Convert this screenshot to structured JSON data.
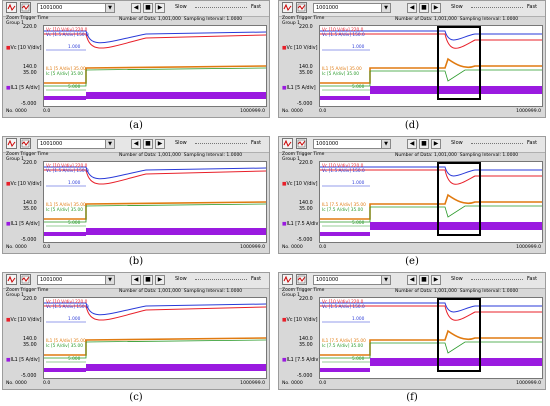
{
  "panels": [
    {
      "caption": "(a)",
      "combo_value": "1001000",
      "slow_label": "Slow",
      "fast_label": "Fast",
      "zoom_label": "Zoom",
      "trigger_label": "Trigger",
      "time_label": "Time",
      "group_label": "Group 1",
      "num_data": "Number of Data: 1,001,000",
      "sampling": "Sampling Interval: 1.0000",
      "y_top": "220.0",
      "y_mid_hi": "140.0",
      "y_mid_lo": "35.00",
      "y_bottom": "-5.000",
      "vc_axis_label": "Vc [10 V/div]",
      "il_axis_label": "IL1 [5 A/div]",
      "legend_top_1": "Vc [10 V/div] 220.0",
      "legend_top_2": "Vc [1.5 A/div] 150.0",
      "legend_top_mark": "1.000",
      "legend_mid_1": "IL1 [5 A/div] 35.00",
      "legend_mid_2": "Ic [5 A/div] 35.00",
      "legend_mid_mark": "5.000",
      "x_start_label": "No. 0000",
      "x_start": "0.0",
      "x_end": "1000999.0"
    },
    {
      "caption": "(d)",
      "combo_value": "1001000",
      "slow_label": "Slow",
      "fast_label": "Fast",
      "zoom_label": "Zoom",
      "trigger_label": "Trigger",
      "time_label": "Time",
      "group_label": "Group 1",
      "num_data": "Number of Data: 1,001,000",
      "sampling": "Sampling Interval: 1.0000",
      "y_top": "220.0",
      "y_mid_hi": "140.0",
      "y_mid_lo": "35.00",
      "y_bottom": "-5.000",
      "vc_axis_label": "Vc [10 V/div]",
      "il_axis_label": "IL1 [5 A/div]",
      "legend_top_1": "Vc [10 V/div] 220.0",
      "legend_top_2": "Vc [1.5 A/div] 150.0",
      "legend_top_mark": "1.000",
      "legend_mid_1": "IL1 [5 A/div] 35.00",
      "legend_mid_2": "Ic [5 A/div] 35.00",
      "legend_mid_mark": "5.000",
      "x_start_label": "No. 0000",
      "x_start": "0.0",
      "x_end": "1000999.0"
    },
    {
      "caption": "(b)",
      "combo_value": "1001000",
      "slow_label": "Slow",
      "fast_label": "Fast",
      "zoom_label": "Zoom",
      "trigger_label": "Trigger",
      "time_label": "Time",
      "group_label": "Group 1",
      "num_data": "Number of Data: 1,001,000",
      "sampling": "Sampling Interval: 1.0000",
      "y_top": "220.0",
      "y_mid_hi": "140.0",
      "y_mid_lo": "35.00",
      "y_bottom": "-5.000",
      "vc_axis_label": "Vc [10 V/div]",
      "il_axis_label": "IL1 [5 A/div]",
      "legend_top_1": "Vc [10 V/div] 220.0",
      "legend_top_2": "Vc [1.5 A/div] 150.0",
      "legend_top_mark": "1.000",
      "legend_mid_1": "IL1 [5 A/div] 35.00",
      "legend_mid_2": "Ic [5 A/div] 35.00",
      "legend_mid_mark": "5.000",
      "x_start_label": "No. 0000",
      "x_start": "0.0",
      "x_end": "1000999.0"
    },
    {
      "caption": "(e)",
      "combo_value": "1001000",
      "slow_label": "Slow",
      "fast_label": "Fast",
      "zoom_label": "Zoom",
      "trigger_label": "Trigger",
      "time_label": "Time",
      "group_label": "Group 1",
      "num_data": "Number of Data: 1,001,000",
      "sampling": "Sampling Interval: 1.0000",
      "y_top": "220.0",
      "y_mid_hi": "140.0",
      "y_mid_lo": "35.00",
      "y_bottom": "-5.000",
      "vc_axis_label": "Vc [10 V/div]",
      "il_axis_label": "IL1 [7.5 A/div]",
      "legend_top_1": "Vc [10 V/div] 220.0",
      "legend_top_2": "Vc [1.5 A/div] 150.0",
      "legend_top_mark": "1.000",
      "legend_mid_1": "IL1 [7.5 A/div] 35.00",
      "legend_mid_2": "Ic [7.5 A/div] 35.00",
      "legend_mid_mark": "5.000",
      "x_start_label": "No. 0000",
      "x_start": "0.0",
      "x_end": "1000999.0"
    },
    {
      "caption": "(c)",
      "combo_value": "1001000",
      "slow_label": "Slow",
      "fast_label": "Fast",
      "zoom_label": "Zoom",
      "trigger_label": "Trigger",
      "time_label": "Time",
      "group_label": "Group 1",
      "num_data": "Number of Data: 1,001,000",
      "sampling": "Sampling Interval: 1.0000",
      "y_top": "220.0",
      "y_mid_hi": "140.0",
      "y_mid_lo": "35.00",
      "y_bottom": "-5.000",
      "vc_axis_label": "Vc [10 V/div]",
      "il_axis_label": "IL1 [5 A/div]",
      "legend_top_1": "Vc [10 V/div] 220.0",
      "legend_top_2": "Vc [1.5 A/div] 150.0",
      "legend_top_mark": "1.000",
      "legend_mid_1": "IL1 [5 A/div] 35.00",
      "legend_mid_2": "Ic [5 A/div] 35.00",
      "legend_mid_mark": "5.000",
      "x_start_label": "No. 0000",
      "x_start": "0.0",
      "x_end": "1000999.0"
    },
    {
      "caption": "(f)",
      "combo_value": "1001000",
      "slow_label": "Slow",
      "fast_label": "Fast",
      "zoom_label": "Zoom",
      "trigger_label": "Trigger",
      "time_label": "Time",
      "group_label": "Group 1",
      "num_data": "Number of Data: 1,001,000",
      "sampling": "Sampling Interval: 1.0000",
      "y_top": "220.0",
      "y_mid_hi": "140.0",
      "y_mid_lo": "35.00",
      "y_bottom": "-5.000",
      "vc_axis_label": "Vc [10 V/div]",
      "il_axis_label": "IL1 [7.5 A/div]",
      "legend_top_1": "Vc [10 V/div] 220.0",
      "legend_top_2": "Vc [1.5 A/div] 150.0",
      "legend_top_mark": "1.000",
      "legend_mid_1": "IL1 [7.5 A/div] 35.00",
      "legend_mid_2": "Ic [7.5 A/div] 35.00",
      "legend_mid_mark": "5.000",
      "x_start_label": "No. 0000",
      "x_start": "0.0",
      "x_end": "1000999.0"
    }
  ],
  "colors": {
    "vc": "#e8202a",
    "ic_blue": "#2a3ad8",
    "il_orange": "#e07a10",
    "green": "#2a9a2a",
    "purple": "#9a1ae0",
    "zoom_box": "#000000"
  }
}
